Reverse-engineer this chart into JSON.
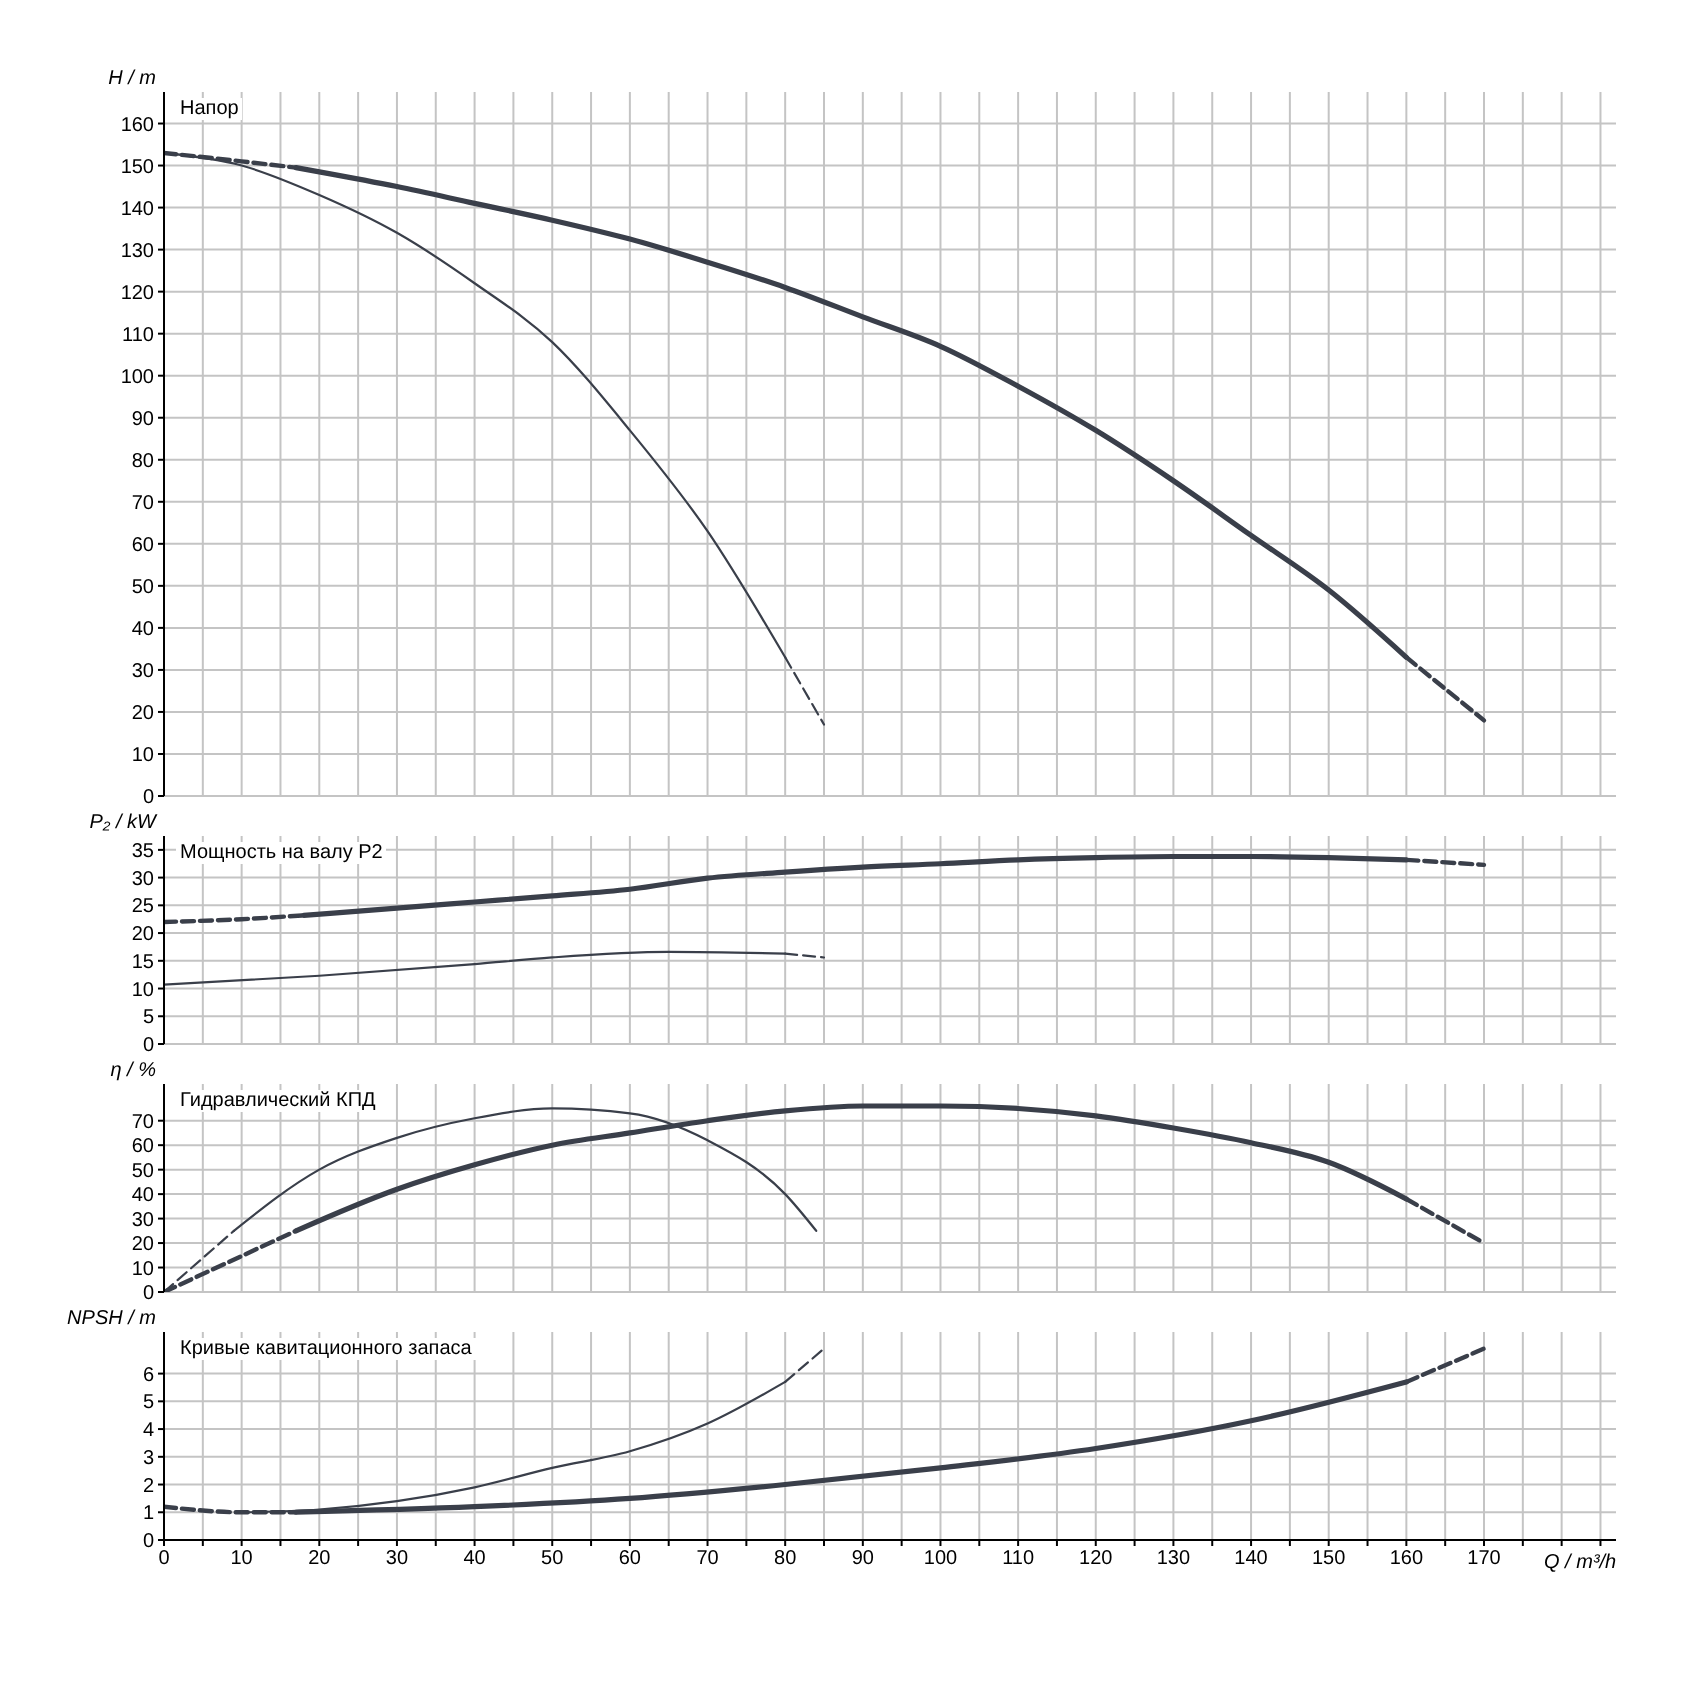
{
  "chart_data": [
    {
      "type": "line",
      "title": "Напор",
      "ylabel": "H / m",
      "xlim": [
        0,
        187
      ],
      "ylim": [
        0,
        167.5
      ],
      "tick_labels": "y",
      "grid": true,
      "marker": "none",
      "xticks": [
        0,
        {
          "value": 5,
          "label": null
        },
        10,
        {
          "value": 15,
          "label": null
        },
        20,
        {
          "value": 25,
          "label": null
        },
        30,
        {
          "value": 35,
          "label": null
        },
        40,
        {
          "value": 45,
          "label": null
        },
        50,
        {
          "value": 55,
          "label": null
        },
        60,
        {
          "value": 65,
          "label": null
        },
        70,
        {
          "value": 75,
          "label": null
        },
        80,
        {
          "value": 85,
          "label": null
        },
        90,
        {
          "value": 95,
          "label": null
        },
        100,
        {
          "value": 105,
          "label": null
        },
        110,
        {
          "value": 115,
          "label": null
        },
        120,
        {
          "value": 125,
          "label": null
        },
        130,
        {
          "value": 135,
          "label": null
        },
        140,
        {
          "value": 145,
          "label": null
        },
        150,
        {
          "value": 155,
          "label": null
        },
        160,
        {
          "value": 165,
          "label": null
        },
        170,
        {
          "value": 175,
          "label": null
        },
        {
          "value": 180,
          "label": null
        },
        {
          "value": 185,
          "label": null
        }
      ],
      "yticks": [
        0,
        10,
        20,
        30,
        40,
        50,
        60,
        70,
        80,
        90,
        100,
        110,
        120,
        130,
        140,
        150,
        160
      ],
      "series": [
        {
          "color": "#3a3f4a",
          "line_style": "solid",
          "x": [
            17,
            20,
            30,
            40,
            50,
            60,
            70,
            80,
            90,
            100,
            110,
            120,
            130,
            140,
            150,
            160
          ],
          "values": [
            149.5,
            148.5,
            145,
            141,
            137,
            132.5,
            127,
            121,
            114,
            107,
            97.5,
            87,
            75,
            62,
            49,
            33
          ]
        },
        {
          "color": "#3a3f4a",
          "line_style": "dashed",
          "x": [
            0,
            10,
            17
          ],
          "values": [
            153,
            151,
            149.5
          ]
        },
        {
          "color": "#3a3f4a",
          "line_style": "dashed",
          "x": [
            160,
            170
          ],
          "values": [
            33,
            18
          ]
        },
        {
          "color": "#3a3f4a",
          "line_style": "solid",
          "x": [
            0,
            10,
            20,
            30,
            40,
            50,
            60,
            70,
            80
          ],
          "values": [
            153,
            150,
            143,
            134,
            122,
            108,
            87,
            63,
            33
          ]
        },
        {
          "color": "#3a3f4a",
          "line_style": "dashed",
          "x": [
            80,
            85
          ],
          "values": [
            33,
            17
          ]
        }
      ]
    },
    {
      "type": "line",
      "title": "Мощность на валу P2",
      "ylabel": "P₂ / kW",
      "xlim": [
        0,
        187
      ],
      "ylim": [
        0,
        37.5
      ],
      "tick_labels": "y",
      "grid": true,
      "marker": "none",
      "xticks": [
        0,
        {
          "value": 5,
          "label": null
        },
        10,
        {
          "value": 15,
          "label": null
        },
        20,
        {
          "value": 25,
          "label": null
        },
        30,
        {
          "value": 35,
          "label": null
        },
        40,
        {
          "value": 45,
          "label": null
        },
        50,
        {
          "value": 55,
          "label": null
        },
        60,
        {
          "value": 65,
          "label": null
        },
        70,
        {
          "value": 75,
          "label": null
        },
        80,
        {
          "value": 85,
          "label": null
        },
        90,
        {
          "value": 95,
          "label": null
        },
        100,
        {
          "value": 105,
          "label": null
        },
        110,
        {
          "value": 115,
          "label": null
        },
        120,
        {
          "value": 125,
          "label": null
        },
        130,
        {
          "value": 135,
          "label": null
        },
        140,
        {
          "value": 145,
          "label": null
        },
        150,
        {
          "value": 155,
          "label": null
        },
        160,
        {
          "value": 165,
          "label": null
        },
        170,
        {
          "value": 175,
          "label": null
        },
        {
          "value": 180,
          "label": null
        },
        {
          "value": 185,
          "label": null
        }
      ],
      "yticks": [
        0,
        5,
        10,
        15,
        20,
        25,
        30,
        35
      ],
      "series": [
        {
          "color": "#3a3f4a",
          "line_style": "solid",
          "x": [
            18,
            30,
            40,
            50,
            60,
            70,
            80,
            90,
            100,
            110,
            120,
            130,
            140,
            150,
            160
          ],
          "values": [
            23.2,
            24.5,
            25.6,
            26.7,
            27.9,
            29.9,
            31,
            31.9,
            32.5,
            33.2,
            33.6,
            33.8,
            33.8,
            33.6,
            33.2
          ]
        },
        {
          "color": "#3a3f4a",
          "line_style": "dashed",
          "x": [
            0,
            10,
            18
          ],
          "values": [
            22,
            22.5,
            23.2
          ]
        },
        {
          "color": "#3a3f4a",
          "line_style": "dashed",
          "x": [
            160,
            170
          ],
          "values": [
            33.2,
            32.3
          ]
        },
        {
          "color": "#3a3f4a",
          "line_style": "solid",
          "x": [
            0,
            20,
            40,
            50,
            65,
            80
          ],
          "values": [
            10.7,
            12.3,
            14.4,
            15.6,
            16.6,
            16.3
          ]
        },
        {
          "color": "#3a3f4a",
          "line_style": "dashed",
          "x": [
            80,
            85
          ],
          "values": [
            16.3,
            15.6
          ]
        }
      ]
    },
    {
      "type": "line",
      "title": "Гидравлический КПД",
      "ylabel": "η / %",
      "xlim": [
        0,
        187
      ],
      "ylim": [
        0,
        85
      ],
      "tick_labels": "y",
      "grid": true,
      "marker": "none",
      "xticks": [
        0,
        {
          "value": 5,
          "label": null
        },
        10,
        {
          "value": 15,
          "label": null
        },
        20,
        {
          "value": 25,
          "label": null
        },
        30,
        {
          "value": 35,
          "label": null
        },
        40,
        {
          "value": 45,
          "label": null
        },
        50,
        {
          "value": 55,
          "label": null
        },
        60,
        {
          "value": 65,
          "label": null
        },
        70,
        {
          "value": 75,
          "label": null
        },
        80,
        {
          "value": 85,
          "label": null
        },
        90,
        {
          "value": 95,
          "label": null
        },
        100,
        {
          "value": 105,
          "label": null
        },
        110,
        {
          "value": 115,
          "label": null
        },
        120,
        {
          "value": 125,
          "label": null
        },
        130,
        {
          "value": 135,
          "label": null
        },
        140,
        {
          "value": 145,
          "label": null
        },
        150,
        {
          "value": 155,
          "label": null
        },
        160,
        {
          "value": 165,
          "label": null
        },
        170,
        {
          "value": 175,
          "label": null
        },
        {
          "value": 180,
          "label": null
        },
        {
          "value": 185,
          "label": null
        }
      ],
      "yticks": [
        0,
        10,
        20,
        30,
        40,
        50,
        60,
        70
      ],
      "series": [
        {
          "color": "#3a3f4a",
          "line_style": "solid",
          "x": [
            17,
            30,
            40,
            50,
            60,
            70,
            80,
            90,
            100,
            110,
            120,
            130,
            140,
            150,
            160
          ],
          "values": [
            25,
            42,
            52,
            60,
            65,
            70,
            74,
            76,
            76,
            75,
            72,
            67,
            61,
            53,
            38
          ]
        },
        {
          "color": "#3a3f4a",
          "line_style": "dashed",
          "x": [
            0,
            17
          ],
          "values": [
            0,
            25
          ]
        },
        {
          "color": "#3a3f4a",
          "line_style": "dashed",
          "x": [
            160,
            170
          ],
          "values": [
            38,
            20
          ]
        },
        {
          "color": "#3a3f4a",
          "line_style": "solid",
          "x": [
            9,
            20,
            30,
            40,
            50,
            60,
            70,
            80,
            84
          ],
          "values": [
            25,
            50,
            63,
            71,
            75,
            73,
            62,
            40,
            25
          ]
        },
        {
          "color": "#3a3f4a",
          "line_style": "dashed",
          "x": [
            0,
            9
          ],
          "values": [
            0,
            25
          ]
        }
      ]
    },
    {
      "type": "line",
      "title": "Кривые кавитационного запаса",
      "ylabel": "NPSH / m",
      "xlabel": "Q / m³/h",
      "xlim": [
        0,
        187
      ],
      "ylim": [
        0,
        7.5
      ],
      "grid": true,
      "marker": "none",
      "xticks": [
        0,
        {
          "value": 5,
          "label": null
        },
        10,
        {
          "value": 15,
          "label": null
        },
        20,
        {
          "value": 25,
          "label": null
        },
        30,
        {
          "value": 35,
          "label": null
        },
        40,
        {
          "value": 45,
          "label": null
        },
        50,
        {
          "value": 55,
          "label": null
        },
        60,
        {
          "value": 65,
          "label": null
        },
        70,
        {
          "value": 75,
          "label": null
        },
        80,
        {
          "value": 85,
          "label": null
        },
        90,
        {
          "value": 95,
          "label": null
        },
        100,
        {
          "value": 105,
          "label": null
        },
        110,
        {
          "value": 115,
          "label": null
        },
        120,
        {
          "value": 125,
          "label": null
        },
        130,
        {
          "value": 135,
          "label": null
        },
        140,
        {
          "value": 145,
          "label": null
        },
        150,
        {
          "value": 155,
          "label": null
        },
        160,
        {
          "value": 165,
          "label": null
        },
        170,
        {
          "value": 175,
          "label": null
        },
        {
          "value": 180,
          "label": null
        },
        {
          "value": 185,
          "label": null
        }
      ],
      "yticks": [
        0,
        1,
        2,
        3,
        4,
        5,
        6
      ],
      "series": [
        {
          "color": "#3a3f4a",
          "line_style": "solid",
          "x": [
            17,
            40,
            60,
            80,
            100,
            120,
            140,
            160
          ],
          "values": [
            1,
            1.2,
            1.5,
            2,
            2.6,
            3.3,
            4.3,
            5.7
          ]
        },
        {
          "color": "#3a3f4a",
          "line_style": "dashed",
          "x": [
            0,
            10,
            17
          ],
          "values": [
            1.2,
            1,
            1
          ]
        },
        {
          "color": "#3a3f4a",
          "line_style": "dashed",
          "x": [
            160,
            170
          ],
          "values": [
            5.7,
            6.9
          ]
        },
        {
          "color": "#3a3f4a",
          "line_style": "solid",
          "x": [
            10,
            20,
            30,
            40,
            50,
            60,
            70,
            80
          ],
          "values": [
            1,
            1.1,
            1.4,
            1.9,
            2.6,
            3.2,
            4.2,
            5.7
          ]
        },
        {
          "color": "#3a3f4a",
          "line_style": "dashed",
          "x": [
            80,
            85
          ],
          "values": [
            5.7,
            6.9
          ]
        }
      ]
    }
  ]
}
